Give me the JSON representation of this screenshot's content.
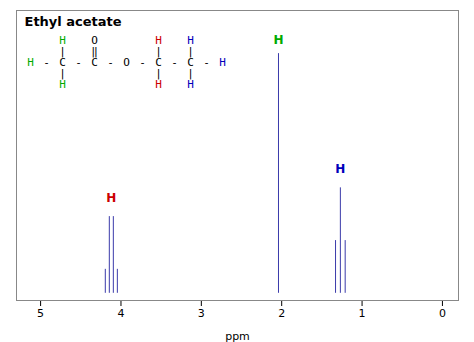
{
  "chart_data": {
    "type": "stem",
    "title": "Ethyl acetate",
    "xlabel": "ppm",
    "x": [
      2.04,
      4.045,
      4.095,
      4.145,
      4.195,
      1.21,
      1.27,
      1.33
    ],
    "values": [
      1.0,
      0.1,
      0.32,
      0.32,
      0.1,
      0.22,
      0.44,
      0.22
    ],
    "color": "#3a3aaa",
    "xlim": [
      5.3,
      -0.2
    ],
    "xticks": [
      5,
      4,
      3,
      2,
      1,
      0
    ],
    "ylim": [
      -0.03,
      1.18
    ],
    "tick_labels": "x",
    "annotations": [
      {
        "text": "H",
        "x": 2.04,
        "y": 1.04,
        "color": "#00aa00"
      },
      {
        "text": "H",
        "x": 4.12,
        "y": 0.38,
        "color": "#cc0000"
      },
      {
        "text": "H",
        "x": 1.27,
        "y": 0.5,
        "color": "#0000bb"
      }
    ],
    "molecule": {
      "rows": [
        [
          null,
          null,
          "H",
          null,
          "O",
          null,
          null,
          null,
          "H",
          null,
          "H",
          null,
          null
        ],
        [
          null,
          null,
          "|",
          null,
          "‖",
          null,
          null,
          null,
          "|",
          null,
          "|",
          null,
          null
        ],
        [
          "H",
          "-",
          "C",
          "-",
          "C",
          "-",
          "O",
          "-",
          "C",
          "-",
          "C",
          "-",
          "H"
        ],
        [
          null,
          null,
          "|",
          null,
          null,
          null,
          null,
          null,
          "|",
          null,
          "|",
          null,
          null
        ],
        [
          null,
          null,
          "H",
          null,
          null,
          null,
          null,
          null,
          "H",
          null,
          "H",
          null,
          null
        ]
      ],
      "colors": [
        [
          null,
          null,
          "#00aa00",
          null,
          "black",
          null,
          null,
          null,
          "#cc0000",
          null,
          "#0000bb",
          null,
          null
        ],
        [
          null,
          null,
          "black",
          null,
          "black",
          null,
          null,
          null,
          "black",
          null,
          "black",
          null,
          null
        ],
        [
          "#00aa00",
          "black",
          "black",
          "black",
          "black",
          "black",
          "black",
          "black",
          "black",
          "black",
          "black",
          "black",
          "#0000bb"
        ],
        [
          null,
          null,
          "black",
          null,
          null,
          null,
          null,
          null,
          "black",
          null,
          "black",
          null,
          null
        ],
        [
          null,
          null,
          "#00aa00",
          null,
          null,
          null,
          null,
          null,
          "#cc0000",
          null,
          "#0000bb",
          null,
          null
        ]
      ]
    }
  }
}
